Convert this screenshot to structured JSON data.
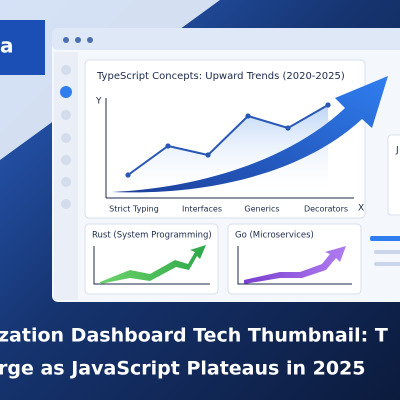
{
  "logo": "a",
  "window": {
    "chart": {
      "title": "TypeScript Concepts: Upward Trends (2020-2025)",
      "y_axis": "Y",
      "x_axis": "X",
      "categories": [
        "Strict Typing",
        "Interfaces",
        "Generics",
        "Decorators"
      ]
    },
    "panels": [
      {
        "title": "Rust (System Programming)"
      },
      {
        "title": "Go (Microservices)"
      }
    ],
    "side_panel": {
      "title": "J"
    }
  },
  "headline": [
    "zation Dashboard Tech Thumbnail: T",
    "rge as JavaScript Plateaus in 2025"
  ]
}
